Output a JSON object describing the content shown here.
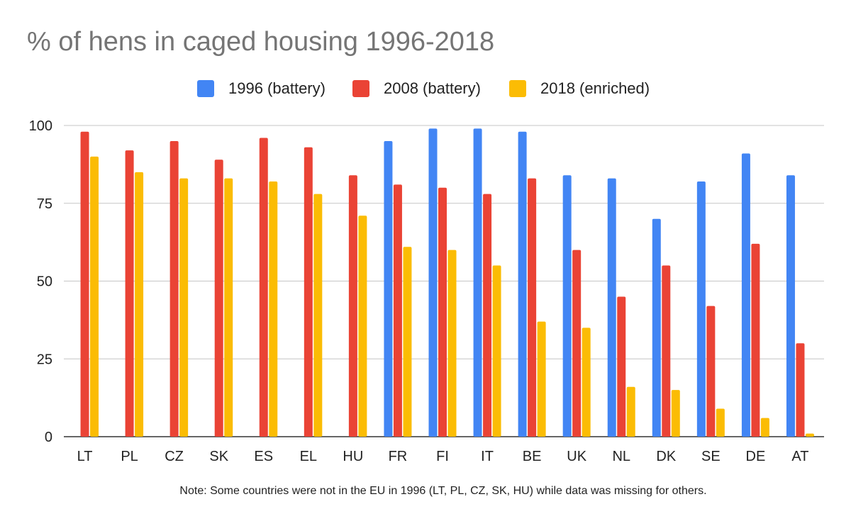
{
  "chart_data": {
    "type": "bar",
    "title": "% of hens in caged housing 1996-2018",
    "xlabel": "",
    "ylabel": "",
    "ylim": [
      0,
      100
    ],
    "yticks": [
      0,
      25,
      50,
      75,
      100
    ],
    "grid": true,
    "legend_position": "top",
    "categories": [
      "LT",
      "PL",
      "CZ",
      "SK",
      "ES",
      "EL",
      "HU",
      "FR",
      "FI",
      "IT",
      "BE",
      "UK",
      "NL",
      "DK",
      "SE",
      "DE",
      "AT"
    ],
    "series": [
      {
        "name": "1996 (battery)",
        "color": "#4285F4",
        "values": [
          null,
          null,
          null,
          null,
          null,
          null,
          null,
          95,
          99,
          99,
          98,
          84,
          83,
          70,
          82,
          91,
          84
        ]
      },
      {
        "name": "2008 (battery)",
        "color": "#EA4335",
        "values": [
          98,
          92,
          95,
          89,
          96,
          93,
          84,
          81,
          80,
          78,
          83,
          60,
          45,
          55,
          42,
          62,
          30
        ]
      },
      {
        "name": "2018 (enriched)",
        "color": "#FBBC04",
        "values": [
          90,
          85,
          83,
          83,
          82,
          78,
          71,
          61,
          60,
          55,
          37,
          35,
          16,
          15,
          9,
          6,
          1
        ]
      }
    ],
    "note": "Note: Some countries were not in the EU in 1996 (LT, PL, CZ, SK, HU) while data was missing for others."
  }
}
